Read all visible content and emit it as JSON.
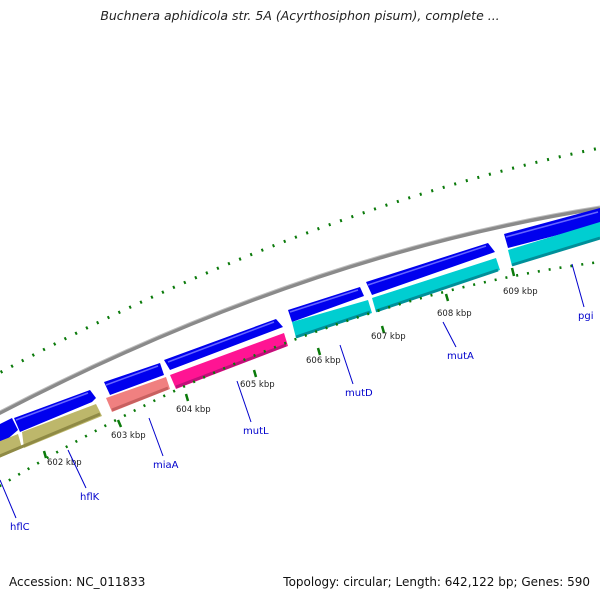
{
  "title": "Buchnera aphidicola str. 5A (Acyrthosiphon pisum), complete ...",
  "accession": "Accession: NC_011833",
  "summary": "Topology: circular; Length: 642,122 bp; Genes: 590",
  "colors": {
    "backbone": "#8c8c8c",
    "forward_gene": "#0000ee",
    "tick": "#0a7a0a",
    "gene_label": "#0000cc",
    "gene_colors": {
      "hflC": "#bdb76b",
      "hflK": "#bdb76b",
      "miaA": "#f08080",
      "mutL": "#ff1493",
      "mutD": "#00ced1",
      "mutA": "#00ced1",
      "pgi": "#00ced1"
    }
  },
  "kbp_labels": [
    "602 kbp",
    "603 kbp",
    "604 kbp",
    "605 kbp",
    "606 kbp",
    "607 kbp",
    "608 kbp",
    "609 kbp"
  ],
  "genes": [
    "hflC",
    "hflK",
    "miaA",
    "mutL",
    "mutD",
    "mutA",
    "pgi"
  ],
  "gene_label_text": [
    "hflC",
    "hflK",
    "miaA",
    "mutL",
    "mutD",
    "mutA",
    "pgi"
  ]
}
